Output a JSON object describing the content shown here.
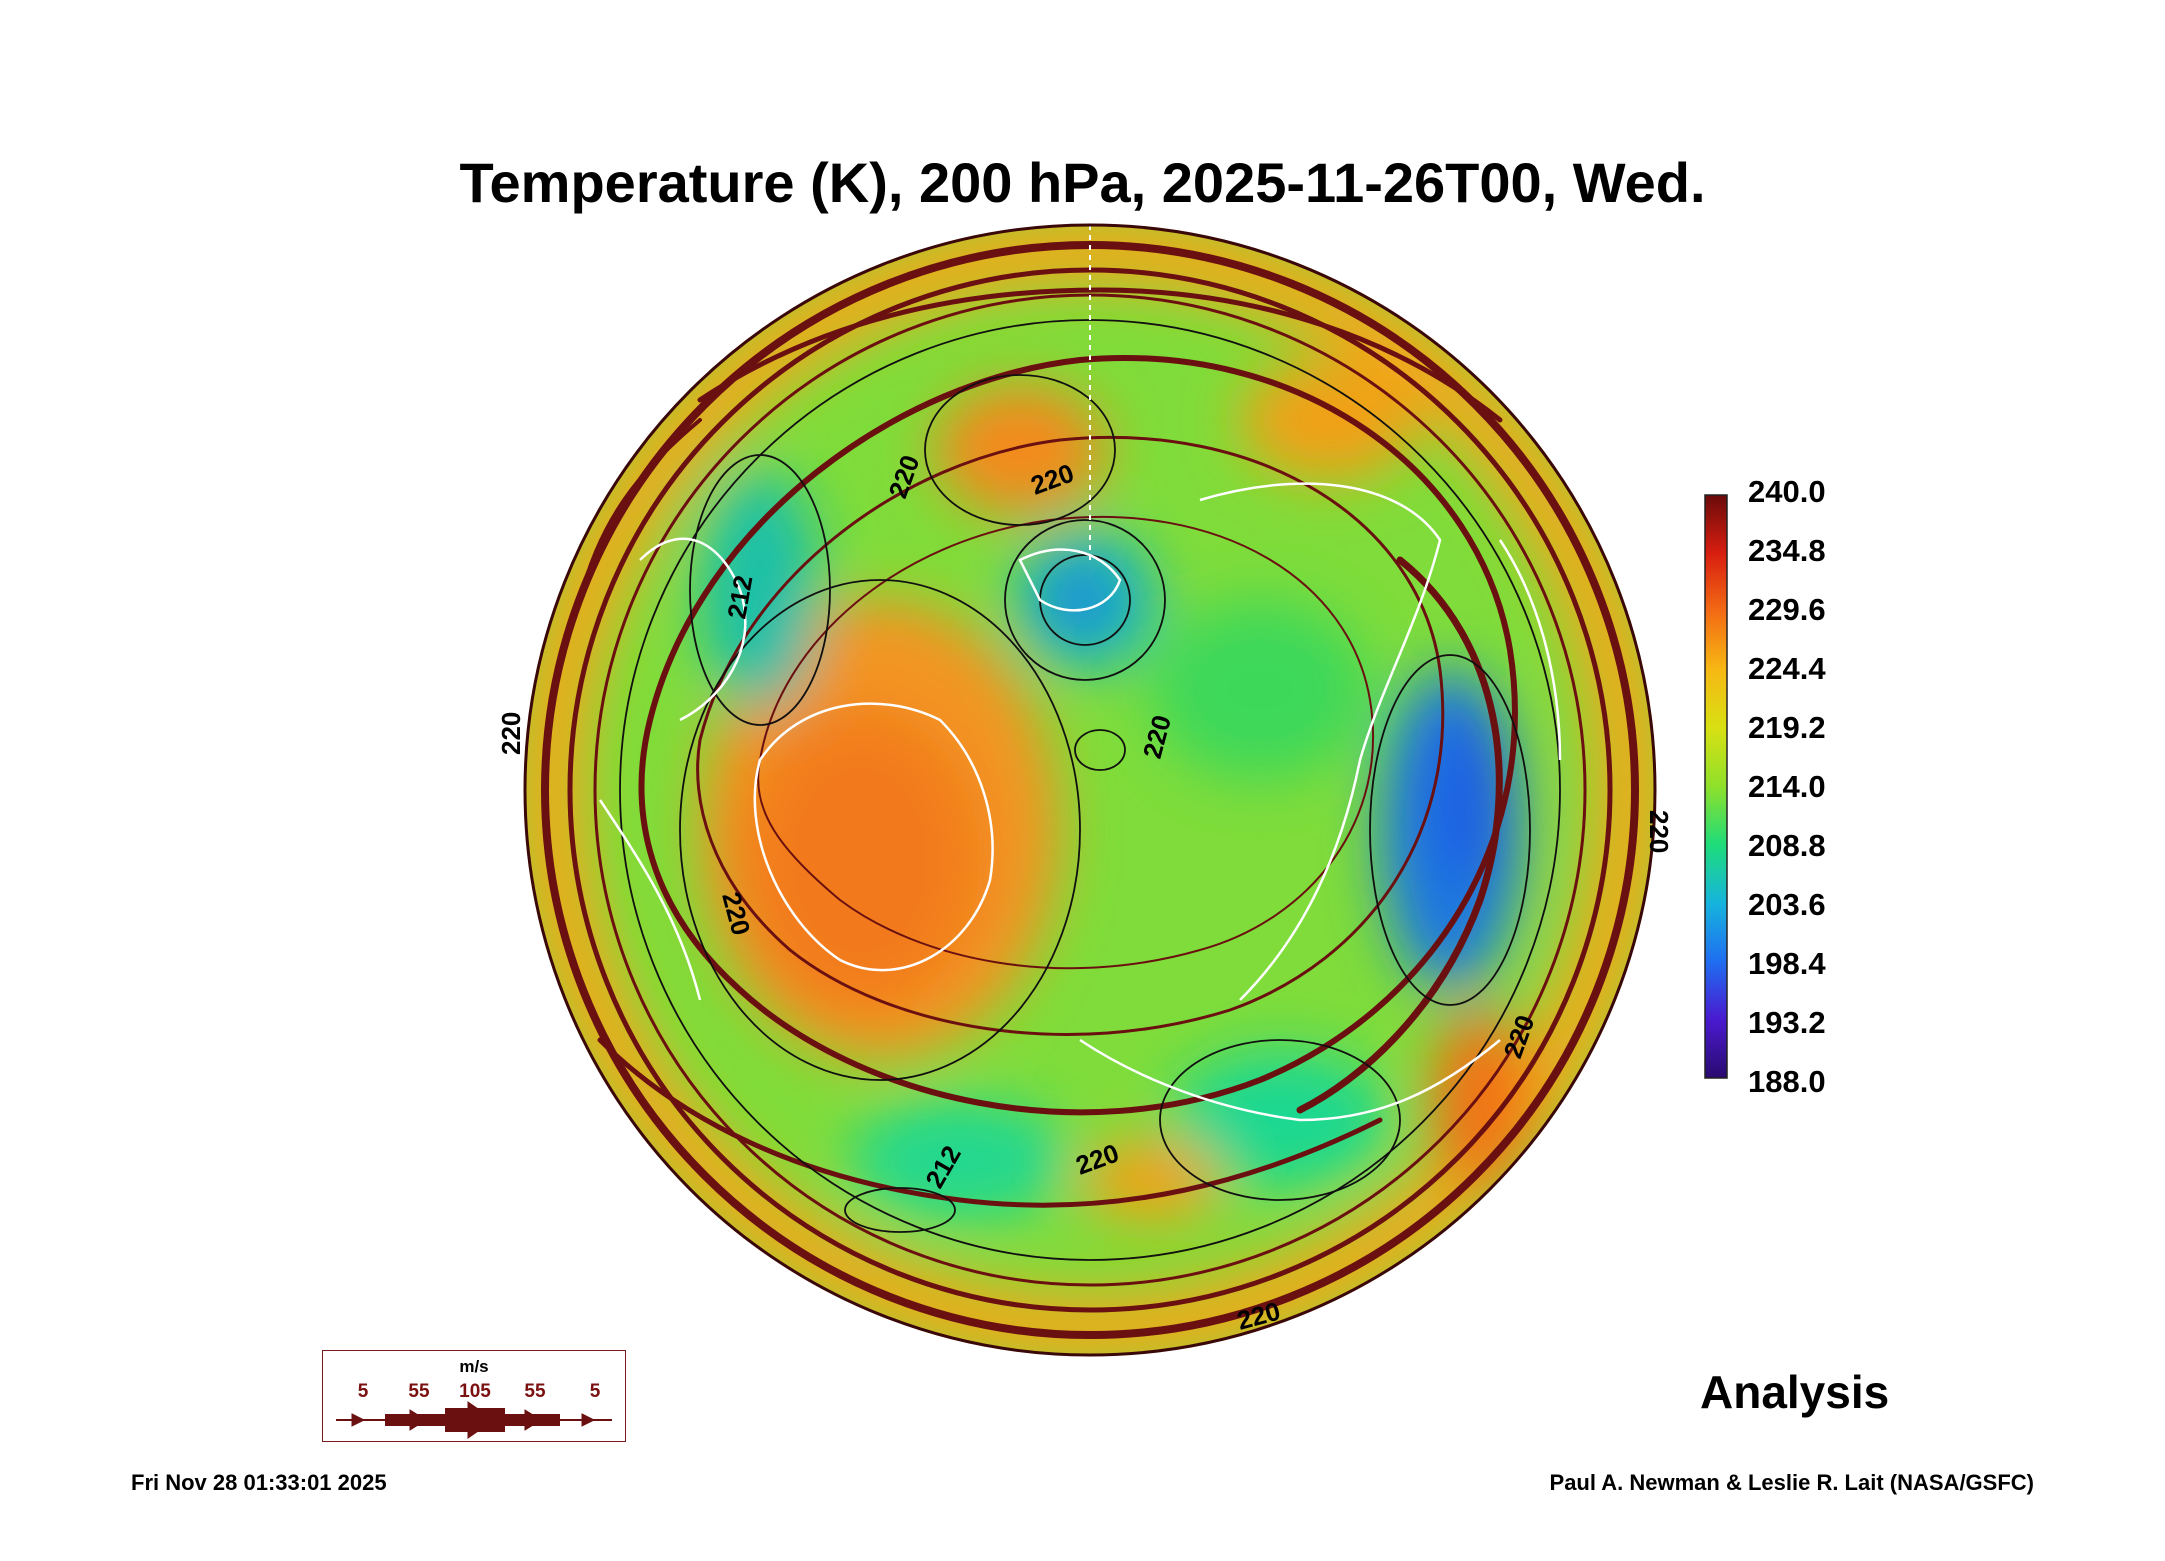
{
  "title": "Temperature (K), 200 hPa, 2025-11-26T00, Wed.",
  "chart_data": {
    "type": "heatmap",
    "projection": "north polar stereographic",
    "variable": "Temperature (K)",
    "level": "200 hPa",
    "colorbar": {
      "min": 188.0,
      "max": 240.0,
      "tick_labels": [
        "240.0",
        "234.8",
        "229.6",
        "224.4",
        "219.2",
        "214.0",
        "208.8",
        "203.6",
        "198.4",
        "193.2",
        "188.0"
      ],
      "colormap": [
        "#2a0a6e",
        "#4a1ad0",
        "#1f6ef0",
        "#16b4dd",
        "#1edc7a",
        "#8fe02a",
        "#d8e012",
        "#f7b814",
        "#f36b14",
        "#d81e10",
        "#6a0a0a"
      ]
    },
    "contour_labels": [
      "220",
      "220",
      "220",
      "220",
      "220",
      "220",
      "220",
      "212",
      "212",
      "220",
      "220"
    ],
    "contour_color": "#000000",
    "streamline_color": "#6b1010",
    "coastline_color": "#ffffff"
  },
  "wind_legend": {
    "unit": "m/s",
    "values": [
      "5",
      "55",
      "105",
      "55",
      "5"
    ]
  },
  "analysis_label": "Analysis",
  "timestamp": "Fri Nov 28 01:33:01 2025",
  "credit": "Paul A. Newman & Leslie R. Lait (NASA/GSFC)"
}
